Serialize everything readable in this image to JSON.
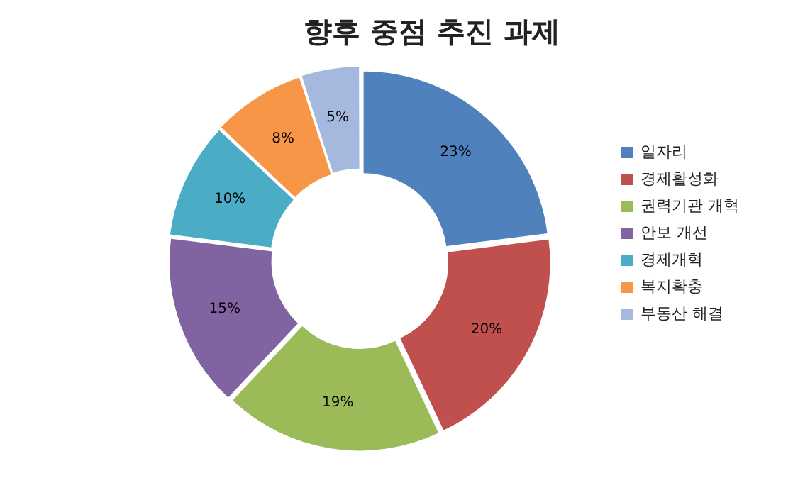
{
  "chart_data": {
    "type": "donut",
    "title": "향후 중점 추진 과제",
    "categories": [
      "일자리",
      "경제활성화",
      "권력기관 개혁",
      "안보 개선",
      "경제개혁",
      "복지확충",
      "부동산 해결"
    ],
    "values": [
      23,
      20,
      19,
      15,
      10,
      8,
      5
    ],
    "colors": [
      "#4f81bd",
      "#c0504d",
      "#9bbb59",
      "#8064a2",
      "#4bacc6",
      "#f79646",
      "#a5b9de"
    ],
    "value_labels": [
      "23%",
      "20%",
      "19%",
      "15%",
      "10%",
      "8%",
      "5%"
    ],
    "legend": "right"
  }
}
